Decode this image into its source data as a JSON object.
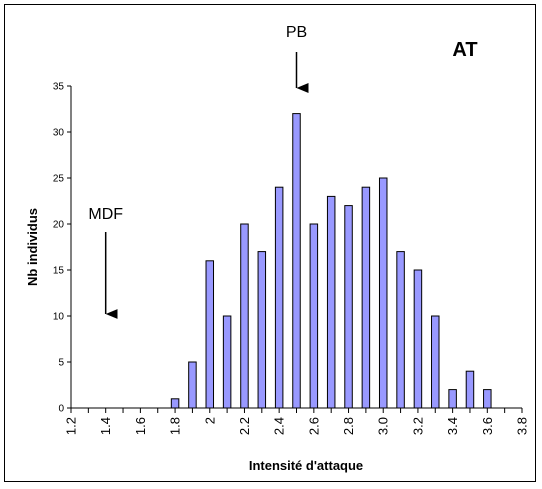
{
  "chart_data": {
    "type": "bar",
    "panel_label": "AT",
    "xlabel": "Intensité d'attaque",
    "ylabel": "Nb individus",
    "ylim": [
      0,
      35
    ],
    "yticks": [
      0,
      5,
      10,
      15,
      20,
      25,
      30,
      35
    ],
    "xlim": [
      1.2,
      3.8
    ],
    "xtick_labels": [
      "1.2",
      "1.4",
      "1.6",
      "1.8",
      "2",
      "2.2",
      "2.4",
      "2.6",
      "2.8",
      "3.0",
      "3.2",
      "3.4",
      "3.6",
      "3.8"
    ],
    "bar_color": "#9999ff",
    "bars": [
      {
        "x": 1.8,
        "value": 1
      },
      {
        "x": 1.9,
        "value": 5
      },
      {
        "x": 2.0,
        "value": 16
      },
      {
        "x": 2.1,
        "value": 10
      },
      {
        "x": 2.2,
        "value": 20
      },
      {
        "x": 2.3,
        "value": 17
      },
      {
        "x": 2.4,
        "value": 24
      },
      {
        "x": 2.5,
        "value": 32
      },
      {
        "x": 2.6,
        "value": 20
      },
      {
        "x": 2.7,
        "value": 23
      },
      {
        "x": 2.8,
        "value": 22
      },
      {
        "x": 2.9,
        "value": 24
      },
      {
        "x": 3.0,
        "value": 25
      },
      {
        "x": 3.1,
        "value": 17
      },
      {
        "x": 3.2,
        "value": 15
      },
      {
        "x": 3.3,
        "value": 10
      },
      {
        "x": 3.4,
        "value": 2
      },
      {
        "x": 3.5,
        "value": 4
      },
      {
        "x": 3.6,
        "value": 2
      }
    ],
    "annotations": [
      {
        "label": "PB",
        "x": 2.5,
        "arrow": "down"
      },
      {
        "label": "MDF",
        "x": 1.4,
        "arrow": "down"
      }
    ]
  }
}
